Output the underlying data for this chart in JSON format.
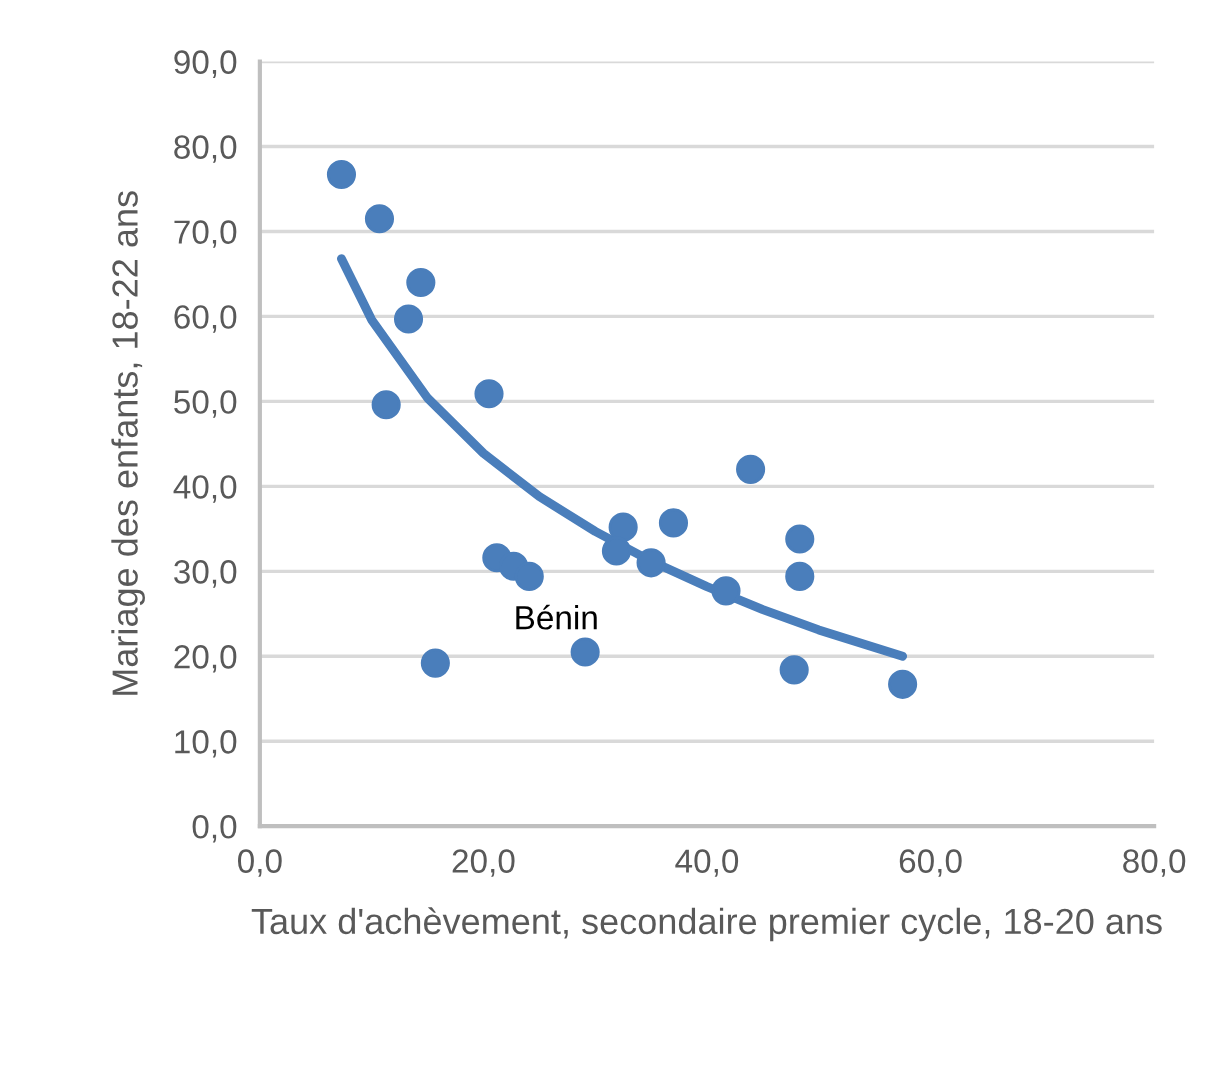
{
  "chart_data": {
    "type": "scatter",
    "xlabel": "Taux d'achèvement, secondaire premier cycle, 18-20 ans",
    "ylabel": "Mariage des enfants, 18-22 ans",
    "series": [
      {
        "color": "#4a7ebb",
        "marker": "circle",
        "x": [
          7.3,
          10.7,
          14.4,
          13.3,
          11.3,
          20.5,
          21.2,
          22.7,
          24.1,
          15.7,
          29.1,
          32.5,
          31.9,
          35.0,
          37.0,
          43.9,
          41.7,
          48.3,
          48.3,
          47.8,
          57.5
        ],
        "values": [
          76.7,
          71.5,
          64.0,
          59.7,
          49.6,
          50.9,
          31.6,
          30.6,
          29.4,
          19.2,
          20.5,
          35.2,
          32.4,
          31.0,
          35.7,
          42.0,
          27.7,
          33.8,
          29.4,
          18.4,
          16.7
        ]
      },
      {
        "type": "line",
        "color": "#4a7ebb",
        "marker": "none",
        "line_style": "solid",
        "x": [
          7.3,
          10,
          15,
          20,
          25,
          30,
          35,
          40,
          45,
          50,
          57.5
        ],
        "values": [
          66.8,
          59.6,
          50.4,
          43.9,
          38.8,
          34.7,
          31.2,
          28.2,
          25.5,
          23.1,
          20.0
        ]
      }
    ],
    "annotations": [
      {
        "text": "Bénin",
        "x": 22.7,
        "y": 30.6
      }
    ],
    "xlim": [
      0,
      80
    ],
    "ylim": [
      0,
      90
    ],
    "xticks": [
      {
        "value": 0,
        "label": "0,0"
      },
      {
        "value": 20,
        "label": "20,0"
      },
      {
        "value": 40,
        "label": "40,0"
      },
      {
        "value": 60,
        "label": "60,0"
      },
      {
        "value": 80,
        "label": "80,0"
      }
    ],
    "yticks": [
      {
        "value": 0,
        "label": "0,0"
      },
      {
        "value": 10,
        "label": "10,0"
      },
      {
        "value": 20,
        "label": "20,0"
      },
      {
        "value": 30,
        "label": "30,0"
      },
      {
        "value": 40,
        "label": "40,0"
      },
      {
        "value": 50,
        "label": "50,0"
      },
      {
        "value": 60,
        "label": "60,0"
      },
      {
        "value": 70,
        "label": "70,0"
      },
      {
        "value": 80,
        "label": "80,0"
      },
      {
        "value": 90,
        "label": "90,0"
      }
    ],
    "grid": "y"
  }
}
